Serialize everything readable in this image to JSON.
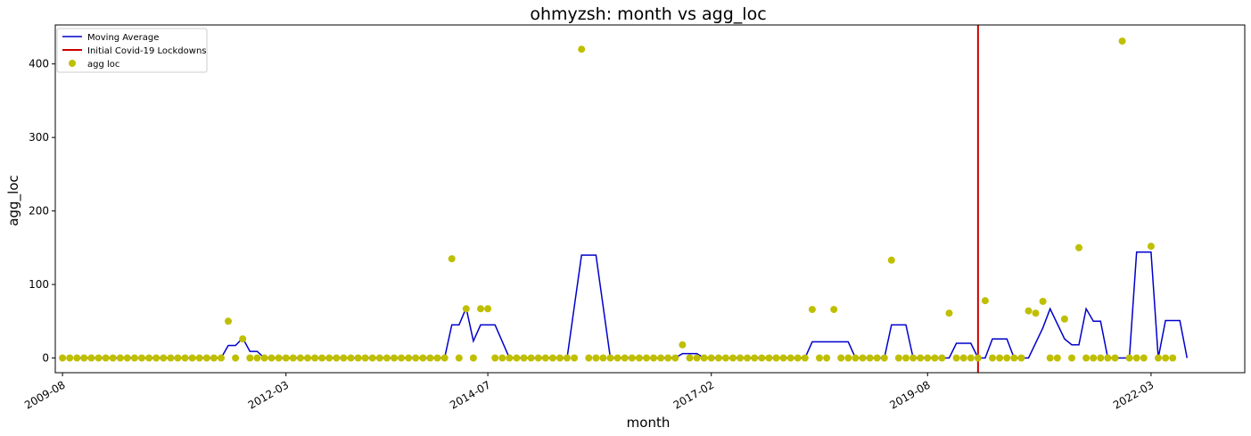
{
  "chart_data": {
    "type": "line",
    "title": "ohmyzsh: month vs agg_loc",
    "xlabel": "month",
    "ylabel": "agg_loc",
    "x_start": "2009-08",
    "x_ticks": [
      "2009-08",
      "2012-03",
      "2014-07",
      "2017-02",
      "2019-08",
      "2022-03"
    ],
    "y_ticks": [
      0,
      100,
      200,
      300,
      400
    ],
    "ylim": [
      -20,
      453
    ],
    "xlim": [
      "2009-07",
      "2023-04"
    ],
    "grid": false,
    "legend_position": "top-left",
    "colors": {
      "moving_average": "#0000cc",
      "lockdown": "#cc0000",
      "points": "#bfbf00"
    },
    "lockdown_month": "2020-03",
    "series": [
      {
        "name": "Moving Average",
        "kind": "line",
        "points": [
          [
            "2009-10",
            0
          ],
          [
            "2010-01",
            0
          ],
          [
            "2010-06",
            0
          ],
          [
            "2011-01",
            0
          ],
          [
            "2011-06",
            0
          ],
          [
            "2011-07",
            17
          ],
          [
            "2011-08",
            17
          ],
          [
            "2011-09",
            27
          ],
          [
            "2011-10",
            9
          ],
          [
            "2011-11",
            9
          ],
          [
            "2011-12",
            0
          ],
          [
            "2012-06",
            0
          ],
          [
            "2013-01",
            0
          ],
          [
            "2013-06",
            0
          ],
          [
            "2014-01",
            0
          ],
          [
            "2014-02",
            45
          ],
          [
            "2014-03",
            45
          ],
          [
            "2014-04",
            68
          ],
          [
            "2014-05",
            23
          ],
          [
            "2014-06",
            45
          ],
          [
            "2014-07",
            45
          ],
          [
            "2014-08",
            45
          ],
          [
            "2014-10",
            0
          ],
          [
            "2015-06",
            0
          ],
          [
            "2015-08",
            140
          ],
          [
            "2015-09",
            140
          ],
          [
            "2015-10",
            140
          ],
          [
            "2015-12",
            0
          ],
          [
            "2016-06",
            0
          ],
          [
            "2016-09",
            0
          ],
          [
            "2016-10",
            6
          ],
          [
            "2016-11",
            6
          ],
          [
            "2016-12",
            6
          ],
          [
            "2017-01",
            0
          ],
          [
            "2017-06",
            0
          ],
          [
            "2018-01",
            0
          ],
          [
            "2018-03",
            0
          ],
          [
            "2018-04",
            22
          ],
          [
            "2018-05",
            22
          ],
          [
            "2018-06",
            22
          ],
          [
            "2018-07",
            22
          ],
          [
            "2018-08",
            22
          ],
          [
            "2018-09",
            22
          ],
          [
            "2018-10",
            0
          ],
          [
            "2019-01",
            0
          ],
          [
            "2019-02",
            0
          ],
          [
            "2019-03",
            45
          ],
          [
            "2019-04",
            45
          ],
          [
            "2019-05",
            45
          ],
          [
            "2019-06",
            0
          ],
          [
            "2019-11",
            0
          ],
          [
            "2019-12",
            20
          ],
          [
            "2020-01",
            20
          ],
          [
            "2020-02",
            20
          ],
          [
            "2020-03",
            0
          ],
          [
            "2020-04",
            0
          ],
          [
            "2020-05",
            26
          ],
          [
            "2020-06",
            26
          ],
          [
            "2020-07",
            26
          ],
          [
            "2020-08",
            0
          ],
          [
            "2020-09",
            0
          ],
          [
            "2020-10",
            0
          ],
          [
            "2020-12",
            41
          ],
          [
            "2021-01",
            67
          ],
          [
            "2021-03",
            26
          ],
          [
            "2021-04",
            18
          ],
          [
            "2021-05",
            18
          ],
          [
            "2021-06",
            67
          ],
          [
            "2021-07",
            50
          ],
          [
            "2021-08",
            50
          ],
          [
            "2021-09",
            0
          ],
          [
            "2021-10",
            0
          ],
          [
            "2021-11",
            0
          ],
          [
            "2021-12",
            0
          ],
          [
            "2022-01",
            144
          ],
          [
            "2022-02",
            144
          ],
          [
            "2022-03",
            144
          ],
          [
            "2022-04",
            0
          ],
          [
            "2022-05",
            51
          ],
          [
            "2022-06",
            51
          ],
          [
            "2022-07",
            51
          ],
          [
            "2022-08",
            0
          ]
        ]
      },
      {
        "name": "Initial Covid-19 Lockdowns",
        "kind": "vline",
        "x": "2020-03"
      },
      {
        "name": "agg loc",
        "kind": "scatter",
        "points": [
          [
            "2009-08",
            0
          ],
          [
            "2009-09",
            0
          ],
          [
            "2009-10",
            0
          ],
          [
            "2009-11",
            0
          ],
          [
            "2009-12",
            0
          ],
          [
            "2010-01",
            0
          ],
          [
            "2010-02",
            0
          ],
          [
            "2010-03",
            0
          ],
          [
            "2010-04",
            0
          ],
          [
            "2010-05",
            0
          ],
          [
            "2010-06",
            0
          ],
          [
            "2010-07",
            0
          ],
          [
            "2010-08",
            0
          ],
          [
            "2010-09",
            0
          ],
          [
            "2010-10",
            0
          ],
          [
            "2010-11",
            0
          ],
          [
            "2010-12",
            0
          ],
          [
            "2011-01",
            0
          ],
          [
            "2011-02",
            0
          ],
          [
            "2011-03",
            0
          ],
          [
            "2011-04",
            0
          ],
          [
            "2011-05",
            0
          ],
          [
            "2011-06",
            0
          ],
          [
            "2011-07",
            50
          ],
          [
            "2011-08",
            0
          ],
          [
            "2011-09",
            26
          ],
          [
            "2011-10",
            0
          ],
          [
            "2011-11",
            0
          ],
          [
            "2011-12",
            0
          ],
          [
            "2012-01",
            0
          ],
          [
            "2012-02",
            0
          ],
          [
            "2012-03",
            0
          ],
          [
            "2012-04",
            0
          ],
          [
            "2012-05",
            0
          ],
          [
            "2012-06",
            0
          ],
          [
            "2012-07",
            0
          ],
          [
            "2012-08",
            0
          ],
          [
            "2012-09",
            0
          ],
          [
            "2012-10",
            0
          ],
          [
            "2012-11",
            0
          ],
          [
            "2012-12",
            0
          ],
          [
            "2013-01",
            0
          ],
          [
            "2013-02",
            0
          ],
          [
            "2013-03",
            0
          ],
          [
            "2013-04",
            0
          ],
          [
            "2013-05",
            0
          ],
          [
            "2013-06",
            0
          ],
          [
            "2013-07",
            0
          ],
          [
            "2013-08",
            0
          ],
          [
            "2013-09",
            0
          ],
          [
            "2013-10",
            0
          ],
          [
            "2013-11",
            0
          ],
          [
            "2013-12",
            0
          ],
          [
            "2014-01",
            0
          ],
          [
            "2014-02",
            135
          ],
          [
            "2014-03",
            0
          ],
          [
            "2014-04",
            67
          ],
          [
            "2014-05",
            0
          ],
          [
            "2014-06",
            67
          ],
          [
            "2014-07",
            67
          ],
          [
            "2014-08",
            0
          ],
          [
            "2014-09",
            0
          ],
          [
            "2014-10",
            0
          ],
          [
            "2014-11",
            0
          ],
          [
            "2014-12",
            0
          ],
          [
            "2015-01",
            0
          ],
          [
            "2015-02",
            0
          ],
          [
            "2015-03",
            0
          ],
          [
            "2015-04",
            0
          ],
          [
            "2015-05",
            0
          ],
          [
            "2015-06",
            0
          ],
          [
            "2015-07",
            0
          ],
          [
            "2015-08",
            420
          ],
          [
            "2015-09",
            0
          ],
          [
            "2015-10",
            0
          ],
          [
            "2015-11",
            0
          ],
          [
            "2015-12",
            0
          ],
          [
            "2016-01",
            0
          ],
          [
            "2016-02",
            0
          ],
          [
            "2016-03",
            0
          ],
          [
            "2016-04",
            0
          ],
          [
            "2016-05",
            0
          ],
          [
            "2016-06",
            0
          ],
          [
            "2016-07",
            0
          ],
          [
            "2016-08",
            0
          ],
          [
            "2016-09",
            0
          ],
          [
            "2016-10",
            18
          ],
          [
            "2016-11",
            0
          ],
          [
            "2016-12",
            0
          ],
          [
            "2017-01",
            0
          ],
          [
            "2017-02",
            0
          ],
          [
            "2017-03",
            0
          ],
          [
            "2017-04",
            0
          ],
          [
            "2017-05",
            0
          ],
          [
            "2017-06",
            0
          ],
          [
            "2017-07",
            0
          ],
          [
            "2017-08",
            0
          ],
          [
            "2017-09",
            0
          ],
          [
            "2017-10",
            0
          ],
          [
            "2017-11",
            0
          ],
          [
            "2017-12",
            0
          ],
          [
            "2018-01",
            0
          ],
          [
            "2018-02",
            0
          ],
          [
            "2018-03",
            0
          ],
          [
            "2018-04",
            66
          ],
          [
            "2018-05",
            0
          ],
          [
            "2018-06",
            0
          ],
          [
            "2018-07",
            66
          ],
          [
            "2018-08",
            0
          ],
          [
            "2018-09",
            0
          ],
          [
            "2018-10",
            0
          ],
          [
            "2018-11",
            0
          ],
          [
            "2018-12",
            0
          ],
          [
            "2019-01",
            0
          ],
          [
            "2019-02",
            0
          ],
          [
            "2019-03",
            133
          ],
          [
            "2019-04",
            0
          ],
          [
            "2019-05",
            0
          ],
          [
            "2019-06",
            0
          ],
          [
            "2019-07",
            0
          ],
          [
            "2019-08",
            0
          ],
          [
            "2019-09",
            0
          ],
          [
            "2019-10",
            0
          ],
          [
            "2019-11",
            61
          ],
          [
            "2019-12",
            0
          ],
          [
            "2020-01",
            0
          ],
          [
            "2020-02",
            0
          ],
          [
            "2020-03",
            0
          ],
          [
            "2020-04",
            78
          ],
          [
            "2020-05",
            0
          ],
          [
            "2020-06",
            0
          ],
          [
            "2020-07",
            0
          ],
          [
            "2020-08",
            0
          ],
          [
            "2020-09",
            0
          ],
          [
            "2020-10",
            64
          ],
          [
            "2020-11",
            61
          ],
          [
            "2020-12",
            77
          ],
          [
            "2021-01",
            0
          ],
          [
            "2021-02",
            0
          ],
          [
            "2021-03",
            53
          ],
          [
            "2021-04",
            0
          ],
          [
            "2021-05",
            150
          ],
          [
            "2021-06",
            0
          ],
          [
            "2021-07",
            0
          ],
          [
            "2021-08",
            0
          ],
          [
            "2021-09",
            0
          ],
          [
            "2021-10",
            0
          ],
          [
            "2021-11",
            431
          ],
          [
            "2021-12",
            0
          ],
          [
            "2022-01",
            0
          ],
          [
            "2022-02",
            0
          ],
          [
            "2022-03",
            152
          ],
          [
            "2022-04",
            0
          ],
          [
            "2022-05",
            0
          ],
          [
            "2022-06",
            0
          ]
        ]
      }
    ]
  }
}
